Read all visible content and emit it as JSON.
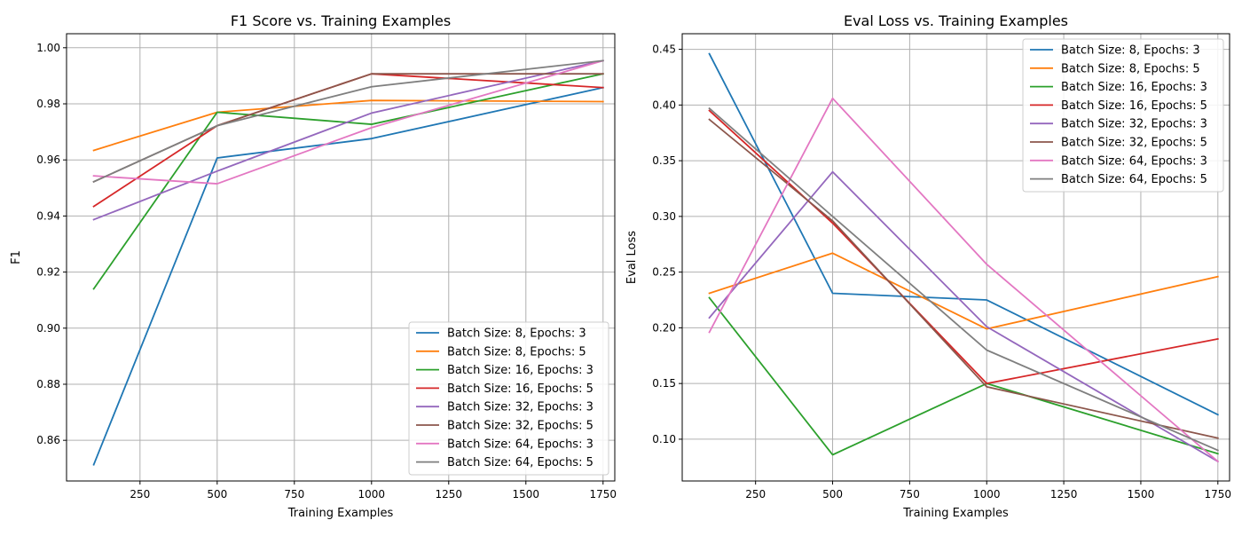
{
  "chart_data": [
    {
      "type": "line",
      "title": "F1 Score vs. Training Examples",
      "xlabel": "Training Examples",
      "ylabel": "F1",
      "xlim": [
        12,
        1788
      ],
      "ylim": [
        0.8455,
        1.005
      ],
      "xticks": [
        250,
        500,
        750,
        1000,
        1250,
        1500,
        1750
      ],
      "yticks": [
        0.86,
        0.88,
        0.9,
        0.92,
        0.94,
        0.96,
        0.98,
        1.0
      ],
      "ytick_labels": [
        "0.86",
        "0.88",
        "0.90",
        "0.92",
        "0.94",
        "0.96",
        "0.98",
        "1.00"
      ],
      "grid": true,
      "legend_position": "lower-right",
      "x": [
        100,
        500,
        1000,
        1750
      ],
      "series": [
        {
          "name": "Batch Size: 8, Epochs: 3",
          "color": "#1f77b4",
          "values": [
            0.8513,
            0.9607,
            0.9676,
            0.9858
          ]
        },
        {
          "name": "Batch Size: 8, Epochs: 5",
          "color": "#ff7f0e",
          "values": [
            0.9634,
            0.977,
            0.9812,
            0.9808
          ]
        },
        {
          "name": "Batch Size: 16, Epochs: 3",
          "color": "#2ca02c",
          "values": [
            0.914,
            0.977,
            0.9727,
            0.9907
          ]
        },
        {
          "name": "Batch Size: 16, Epochs: 5",
          "color": "#d62728",
          "values": [
            0.9434,
            0.9722,
            0.9907,
            0.9858
          ]
        },
        {
          "name": "Batch Size: 32, Epochs: 3",
          "color": "#9467bd",
          "values": [
            0.9387,
            0.956,
            0.9767,
            0.9954
          ]
        },
        {
          "name": "Batch Size: 32, Epochs: 5",
          "color": "#8c564b",
          "values": [
            0.9522,
            0.9722,
            0.9907,
            0.9907
          ]
        },
        {
          "name": "Batch Size: 64, Epochs: 3",
          "color": "#e377c2",
          "values": [
            0.9543,
            0.9515,
            0.9715,
            0.9954
          ]
        },
        {
          "name": "Batch Size: 64, Epochs: 5",
          "color": "#7f7f7f",
          "values": [
            0.9522,
            0.9722,
            0.9861,
            0.9954
          ]
        }
      ]
    },
    {
      "type": "line",
      "title": "Eval Loss vs. Training Examples",
      "xlabel": "Training Examples",
      "ylabel": "Eval Loss",
      "xlim": [
        12,
        1788
      ],
      "ylim": [
        0.0625,
        0.464
      ],
      "xticks": [
        250,
        500,
        750,
        1000,
        1250,
        1500,
        1750
      ],
      "yticks": [
        0.1,
        0.15,
        0.2,
        0.25,
        0.3,
        0.35,
        0.4,
        0.45
      ],
      "ytick_labels": [
        "0.10",
        "0.15",
        "0.20",
        "0.25",
        "0.30",
        "0.35",
        "0.40",
        "0.45"
      ],
      "grid": true,
      "legend_position": "upper-right",
      "x": [
        100,
        500,
        1000,
        1750
      ],
      "series": [
        {
          "name": "Batch Size: 8, Epochs: 3",
          "color": "#1f77b4",
          "values": [
            0.446,
            0.231,
            0.225,
            0.122
          ]
        },
        {
          "name": "Batch Size: 8, Epochs: 5",
          "color": "#ff7f0e",
          "values": [
            0.231,
            0.267,
            0.199,
            0.246
          ]
        },
        {
          "name": "Batch Size: 16, Epochs: 3",
          "color": "#2ca02c",
          "values": [
            0.227,
            0.086,
            0.15,
            0.087
          ]
        },
        {
          "name": "Batch Size: 16, Epochs: 5",
          "color": "#d62728",
          "values": [
            0.395,
            0.294,
            0.15,
            0.19
          ]
        },
        {
          "name": "Batch Size: 32, Epochs: 3",
          "color": "#9467bd",
          "values": [
            0.209,
            0.34,
            0.201,
            0.08
          ]
        },
        {
          "name": "Batch Size: 32, Epochs: 5",
          "color": "#8c564b",
          "values": [
            0.387,
            0.296,
            0.147,
            0.101
          ]
        },
        {
          "name": "Batch Size: 64, Epochs: 3",
          "color": "#e377c2",
          "values": [
            0.196,
            0.406,
            0.257,
            0.08
          ]
        },
        {
          "name": "Batch Size: 64, Epochs: 5",
          "color": "#7f7f7f",
          "values": [
            0.397,
            0.3,
            0.18,
            0.09
          ]
        }
      ]
    }
  ]
}
